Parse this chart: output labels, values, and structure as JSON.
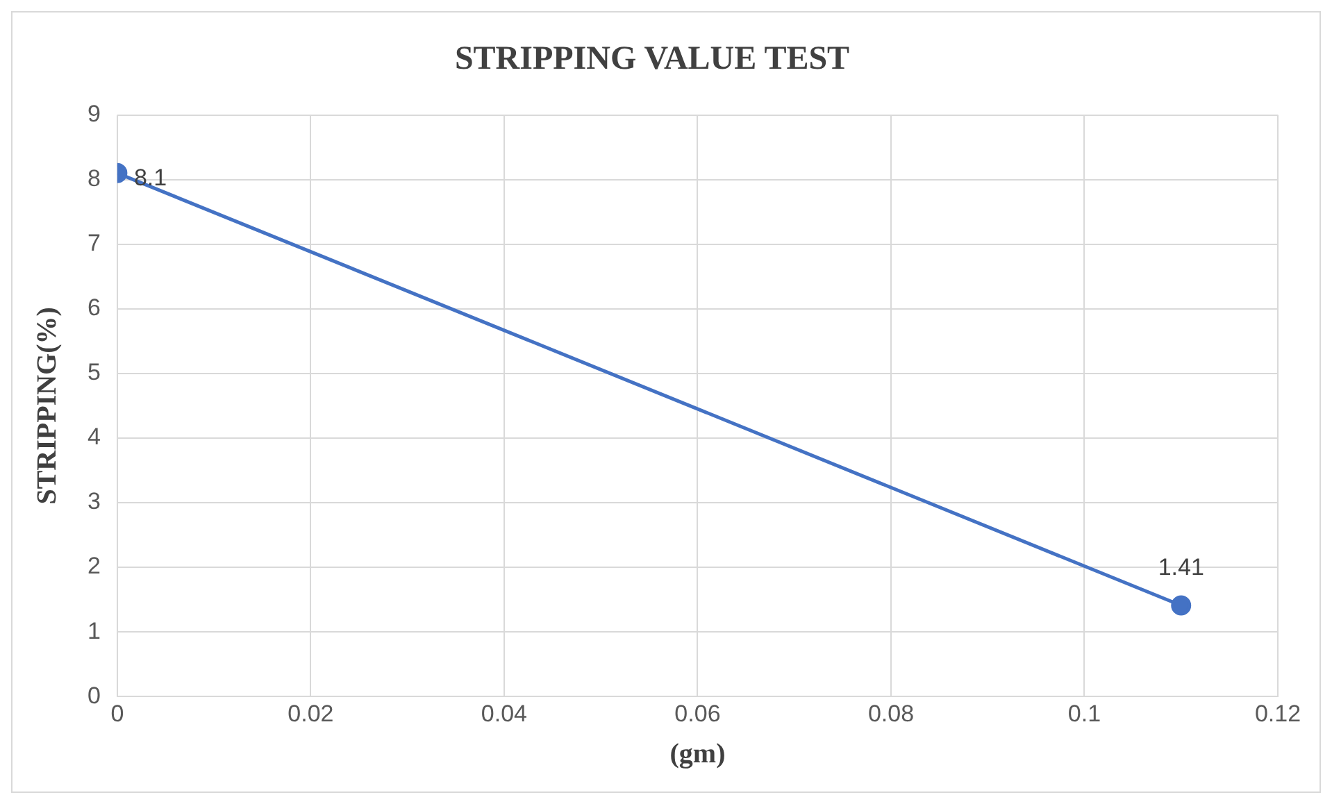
{
  "chart_data": {
    "type": "line",
    "title": "STRIPPING VALUE TEST",
    "xlabel": "(gm)",
    "ylabel": "STRIPPING(%)",
    "x": [
      0,
      0.11
    ],
    "series": [
      {
        "color": "#4472c4",
        "values": [
          8.1,
          1.41
        ]
      }
    ],
    "xlim": [
      0,
      0.12
    ],
    "xticks": [
      0,
      0.02,
      0.04,
      0.06,
      0.08,
      0.1,
      0.12
    ],
    "ylim": [
      0,
      9
    ],
    "yticks": [
      0,
      1,
      2,
      3,
      4,
      5,
      6,
      7,
      8,
      9
    ],
    "grid": true,
    "legend": false,
    "marker": "circle",
    "line_style": "solid",
    "data_labels": true
  }
}
